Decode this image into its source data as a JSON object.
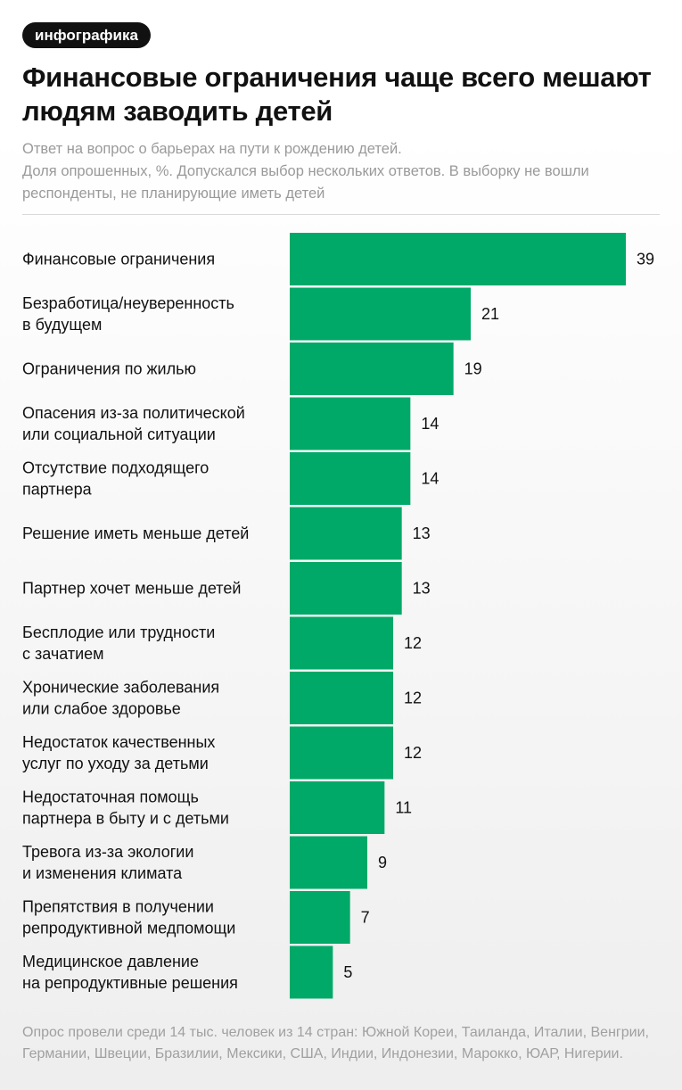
{
  "header": {
    "badge": "инфографика",
    "title": "Финансовые ограничения чаще всего мешают людям заводить детей",
    "subtitle_lines": [
      "Ответ на вопрос о барьерах на пути к рождению детей.",
      "Доля опрошенных, %. Допускался выбор нескольких ответов. В выборку не вошли",
      "респонденты, не планирующие иметь детей"
    ]
  },
  "footnote": "Опрос провели среди 14 тыс. человек из 14 стран: Южной Кореи, Таиланда, Италии, Венгрии, Германии, Швеции, Бразилии, Мексики, США, Индии, Индонезии, Марокко, ЮАР, Нигерии.",
  "colors": {
    "bar": "#00a968",
    "badge_bg": "#111111"
  },
  "chart_data": {
    "type": "bar",
    "orientation": "horizontal",
    "categories": [
      [
        "Финансовые ограничения"
      ],
      [
        "Безработица/неуверенность",
        "в будущем"
      ],
      [
        "Ограничения по жилью"
      ],
      [
        "Опасения из-за политической",
        "или социальной ситуации"
      ],
      [
        "Отсутствие подходящего",
        "партнера"
      ],
      [
        "Решение иметь меньше детей"
      ],
      [
        "Партнер хочет меньше детей"
      ],
      [
        "Бесплодие или трудности",
        "с зачатием"
      ],
      [
        "Хронические заболевания",
        "или слабое здоровье"
      ],
      [
        "Недостаток качественных",
        "услуг по уходу за детьми"
      ],
      [
        "Недостаточная помощь",
        "партнера в быту и с детьми"
      ],
      [
        "Тревога из-за экологии",
        "и изменения климата"
      ],
      [
        "Препятствия в получении",
        "репродуктивной медпомощи"
      ],
      [
        "Медицинское давление",
        "на репродуктивные решения"
      ]
    ],
    "values": [
      39,
      21,
      19,
      14,
      14,
      13,
      13,
      12,
      12,
      12,
      11,
      9,
      7,
      5
    ],
    "xlim": [
      0,
      39
    ],
    "grid": false,
    "legend": "none"
  }
}
